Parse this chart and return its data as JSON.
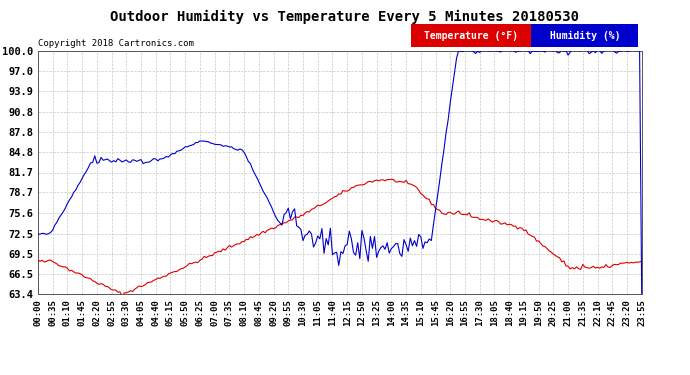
{
  "title": "Outdoor Humidity vs Temperature Every 5 Minutes 20180530",
  "copyright_text": "Copyright 2018 Cartronics.com",
  "legend_temp_label": "Temperature (°F)",
  "legend_hum_label": "Humidity (%)",
  "temp_color": "#dd0000",
  "hum_color": "#0000cc",
  "background_color": "#ffffff",
  "grid_color": "#c8c8c8",
  "ylim": [
    63.4,
    100.0
  ],
  "yticks": [
    63.4,
    66.5,
    69.5,
    72.5,
    75.6,
    78.7,
    81.7,
    84.8,
    87.8,
    90.8,
    93.9,
    97.0,
    100.0
  ],
  "num_points": 288,
  "xtick_labels": [
    "00:00",
    "00:35",
    "01:10",
    "01:45",
    "02:20",
    "02:55",
    "03:30",
    "04:05",
    "04:40",
    "05:15",
    "05:50",
    "06:25",
    "07:00",
    "07:35",
    "08:10",
    "08:45",
    "09:20",
    "09:55",
    "10:30",
    "11:05",
    "11:40",
    "12:15",
    "12:50",
    "13:25",
    "14:00",
    "14:35",
    "15:10",
    "15:45",
    "16:20",
    "16:55",
    "17:30",
    "18:05",
    "18:40",
    "19:15",
    "19:50",
    "20:25",
    "21:00",
    "21:35",
    "22:10",
    "22:45",
    "23:20",
    "23:55"
  ]
}
